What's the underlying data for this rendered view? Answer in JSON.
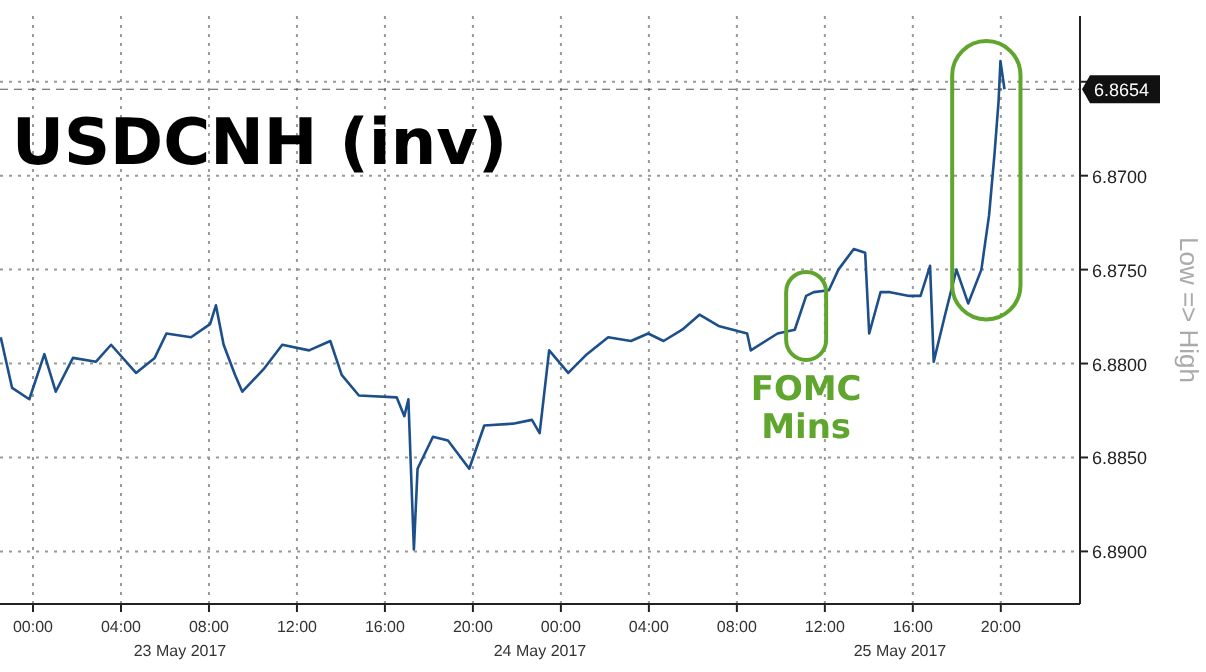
{
  "chart_data": {
    "type": "line",
    "title": "USDCNH (inv)",
    "ylabel": "Low => High",
    "xlim": [
      "2017-05-22T22:30",
      "2017-05-24T23:36"
    ],
    "ylim": [
      6.8928,
      6.8615
    ],
    "xticks": [
      {
        "value": "2017-05-23T00:00",
        "label": "00:00"
      },
      {
        "value": "2017-05-23T04:00",
        "label": "04:00"
      },
      {
        "value": "2017-05-23T08:00",
        "label": "08:00"
      },
      {
        "value": "2017-05-23T12:00",
        "label": "12:00"
      },
      {
        "value": "2017-05-23T16:00",
        "label": "16:00"
      },
      {
        "value": "2017-05-23T20:00",
        "label": "20:00"
      },
      {
        "value": "2017-05-24T00:00",
        "label": "00:00"
      },
      {
        "value": "2017-05-24T04:00",
        "label": "04:00"
      },
      {
        "value": "2017-05-24T08:00",
        "label": "08:00"
      },
      {
        "value": "2017-05-24T12:00",
        "label": "12:00"
      },
      {
        "value": "2017-05-24T16:00",
        "label": "16:00"
      },
      {
        "value": "2017-05-24T20:00",
        "label": "20:00"
      }
    ],
    "yticks": [
      {
        "value": 6.865,
        "label": null
      },
      {
        "value": 6.87,
        "label": "6.8700"
      },
      {
        "value": 6.875,
        "label": "6.8750"
      },
      {
        "value": 6.88,
        "label": "6.8800"
      },
      {
        "value": 6.885,
        "label": "6.8850"
      },
      {
        "value": 6.89,
        "label": "6.8900"
      }
    ],
    "grid": true,
    "line_style": "solid",
    "x": [
      "2017-05-22T22:32",
      "2017-05-22T23:03",
      "2017-05-22T23:50",
      "2017-05-23T00:31",
      "2017-05-23T01:02",
      "2017-05-23T01:49",
      "2017-05-23T02:52",
      "2017-05-23T03:33",
      "2017-05-23T04:41",
      "2017-05-23T05:32",
      "2017-05-23T06:04",
      "2017-05-23T07:11",
      "2017-05-23T08:03",
      "2017-05-23T08:19",
      "2017-05-23T08:40",
      "2017-05-23T09:11",
      "2017-05-23T09:31",
      "2017-05-23T10:29",
      "2017-05-23T11:20",
      "2017-05-23T12:33",
      "2017-05-23T13:31",
      "2017-05-23T14:02",
      "2017-05-23T14:49",
      "2017-05-23T16:32",
      "2017-05-23T16:53",
      "2017-05-23T17:04",
      "2017-05-23T17:19",
      "2017-05-23T17:29",
      "2017-05-23T18:11",
      "2017-05-23T18:52",
      "2017-05-23T19:50",
      "2017-05-23T20:31",
      "2017-05-23T21:49",
      "2017-05-23T22:41",
      "2017-05-23T23:02",
      "2017-05-23T23:28",
      "2017-05-24T00:20",
      "2017-05-24T01:11",
      "2017-05-24T02:09",
      "2017-05-24T03:11",
      "2017-05-24T03:58",
      "2017-05-24T04:40",
      "2017-05-24T05:31",
      "2017-05-24T06:18",
      "2017-05-24T07:10",
      "2017-05-24T08:28",
      "2017-05-24T08:38",
      "2017-05-24T09:51",
      "2017-05-24T10:38",
      "2017-05-24T11:09",
      "2017-05-24T11:30",
      "2017-05-24T12:11",
      "2017-05-24T12:37",
      "2017-05-24T13:19",
      "2017-05-24T13:50",
      "2017-05-24T14:01",
      "2017-05-24T14:32",
      "2017-05-24T14:58",
      "2017-05-24T15:50",
      "2017-05-24T16:21",
      "2017-05-24T16:47",
      "2017-05-24T16:57",
      "2017-05-24T17:28",
      "2017-05-24T17:59",
      "2017-05-24T18:31",
      "2017-05-24T19:07",
      "2017-05-24T19:28",
      "2017-05-24T19:43",
      "2017-05-24T19:54",
      "2017-05-24T19:59",
      "2017-05-24T20:10"
    ],
    "series": [
      {
        "color": "#1d4f8a",
        "values": [
          6.8786,
          6.8813,
          6.8819,
          6.8795,
          6.8815,
          6.8797,
          6.8799,
          6.879,
          6.8805,
          6.8797,
          6.8784,
          6.8786,
          6.8779,
          6.8769,
          6.879,
          6.8806,
          6.8815,
          6.8803,
          6.879,
          6.8793,
          6.8788,
          6.8806,
          6.8817,
          6.8818,
          6.8828,
          6.8819,
          6.8899,
          6.8856,
          6.8839,
          6.8841,
          6.8856,
          6.8833,
          6.8832,
          6.883,
          6.8837,
          6.8793,
          6.8805,
          6.8795,
          6.8786,
          6.8788,
          6.8784,
          6.8788,
          6.8782,
          6.8774,
          6.878,
          6.8784,
          6.8793,
          6.8784,
          6.8782,
          6.8764,
          6.8762,
          6.8761,
          6.875,
          6.8739,
          6.8741,
          6.8784,
          6.8762,
          6.8762,
          6.8764,
          6.8764,
          6.8748,
          6.8799,
          6.8774,
          6.875,
          6.8768,
          6.875,
          6.8721,
          6.8688,
          6.866,
          6.8639,
          6.8654
        ]
      }
    ],
    "ref_lines": [
      {
        "axis": "y",
        "value": 6.8654,
        "label": "6.8654"
      }
    ],
    "annotations": [
      {
        "text": "FOMC Mins",
        "x": "2017-05-24T11:09",
        "y": 6.8764
      },
      "23 May 2017",
      "24 May 2017",
      "25 May 2017"
    ]
  }
}
